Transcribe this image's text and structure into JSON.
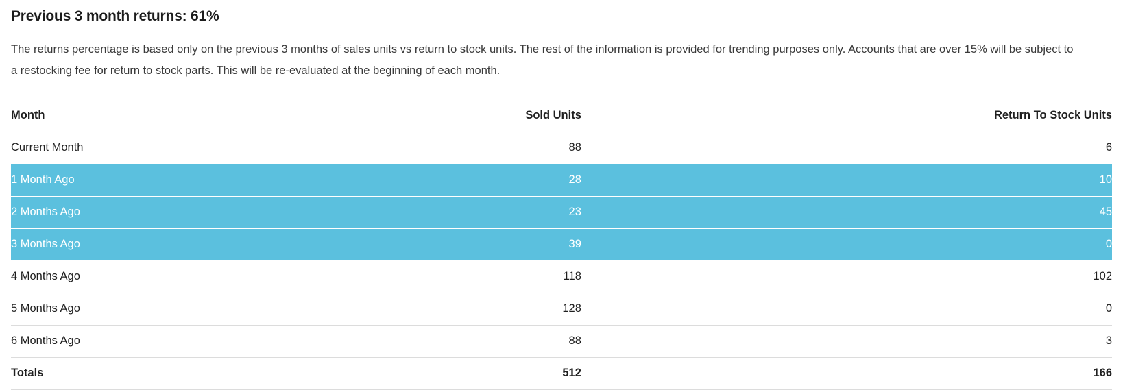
{
  "page": {
    "title": "Previous 3 month returns: 61%",
    "description": "The returns percentage is based only on the previous 3 months of sales units vs return to stock units. The rest of the information is provided for trending purposes only. Accounts that are over 15% will be subject to a restocking fee for return to stock parts. This will be re-evaluated at the beginning of each month."
  },
  "colors": {
    "highlight_row_background": "#5bc0de",
    "highlight_row_text": "#ffffff",
    "row_border": "#dcdcdc"
  },
  "table": {
    "columns": [
      "Month",
      "Sold Units",
      "Return To Stock Units"
    ],
    "rows": [
      {
        "month": "Current Month",
        "sold": "88",
        "returned": "6",
        "highlighted": false
      },
      {
        "month": "1 Month Ago",
        "sold": "28",
        "returned": "10",
        "highlighted": true
      },
      {
        "month": "2 Months Ago",
        "sold": "23",
        "returned": "45",
        "highlighted": true
      },
      {
        "month": "3 Months Ago",
        "sold": "39",
        "returned": "0",
        "highlighted": true
      },
      {
        "month": "4 Months Ago",
        "sold": "118",
        "returned": "102",
        "highlighted": false
      },
      {
        "month": "5 Months Ago",
        "sold": "128",
        "returned": "0",
        "highlighted": false
      },
      {
        "month": "6 Months Ago",
        "sold": "88",
        "returned": "3",
        "highlighted": false
      }
    ],
    "totals": {
      "label": "Totals",
      "sold": "512",
      "returned": "166"
    }
  }
}
